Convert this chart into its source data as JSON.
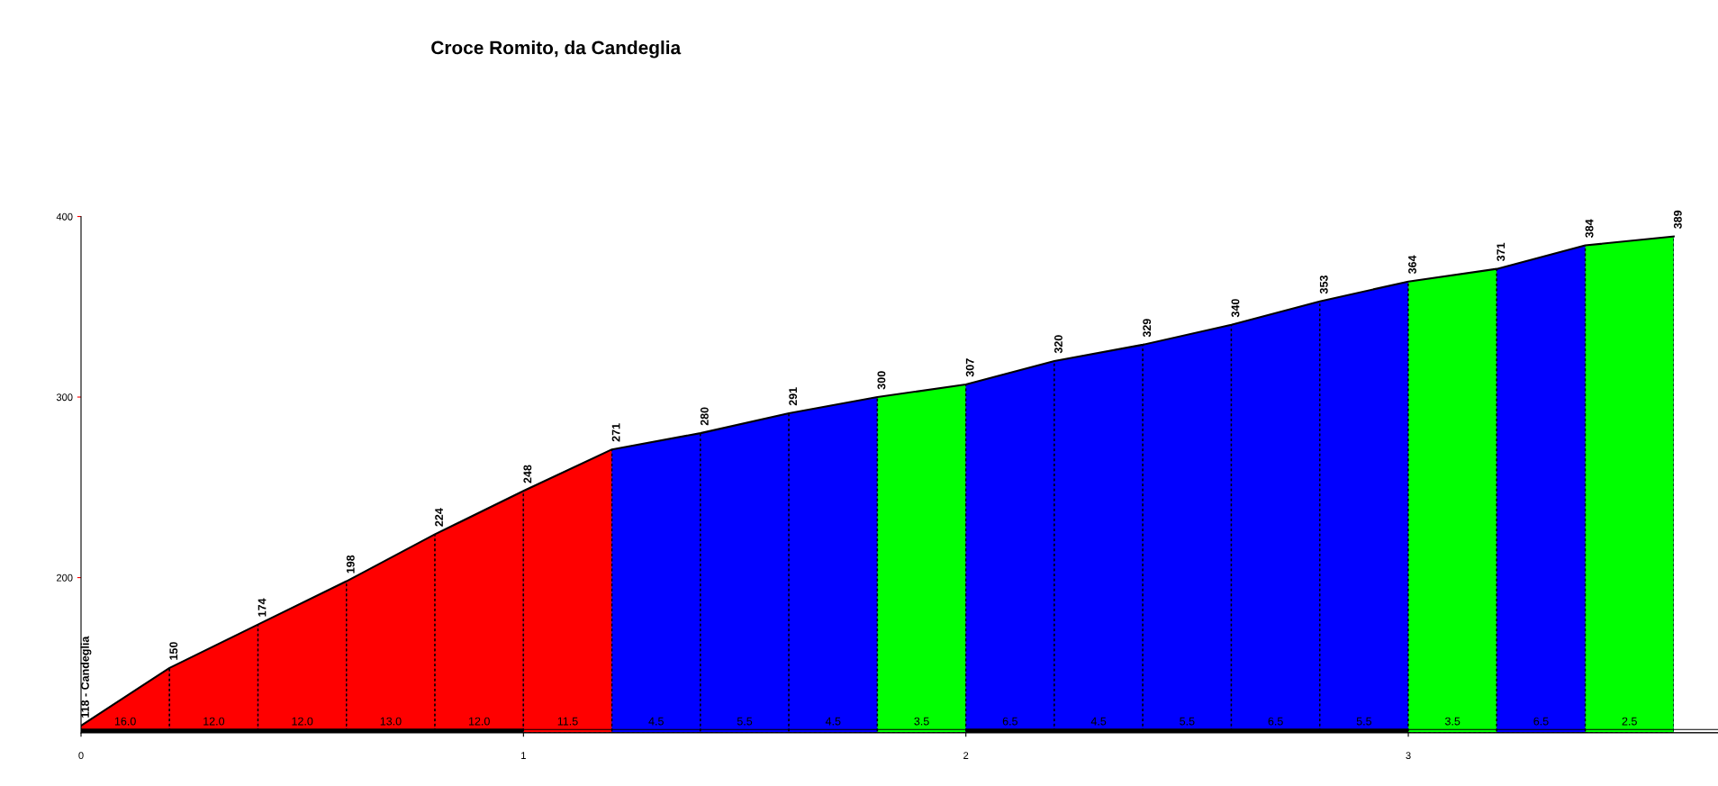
{
  "chart_data": {
    "type": "area",
    "title": "Croce Romito, da Candeglia",
    "x": [
      0,
      0.2,
      0.4,
      0.6,
      0.8,
      1.0,
      1.2,
      1.4,
      1.6,
      1.8,
      2.0,
      2.2,
      2.4,
      2.6,
      2.8,
      3.0,
      3.2,
      3.4,
      3.6
    ],
    "values": [
      118,
      150,
      174,
      198,
      224,
      248,
      271,
      280,
      291,
      300,
      307,
      320,
      329,
      340,
      353,
      364,
      371,
      384,
      389
    ],
    "value_labels": [
      "118 - Candeglia",
      "150",
      "174",
      "198",
      "224",
      "248",
      "271",
      "280",
      "291",
      "300",
      "307",
      "320",
      "329",
      "340",
      "353",
      "364",
      "371",
      "384",
      "389"
    ],
    "bands": [
      {
        "axis": "x",
        "from": 0,
        "to": 0.2,
        "label": "16.0",
        "color": "#ff0000"
      },
      {
        "axis": "x",
        "from": 0.2,
        "to": 0.4,
        "label": "12.0",
        "color": "#ff0000"
      },
      {
        "axis": "x",
        "from": 0.4,
        "to": 0.6,
        "label": "12.0",
        "color": "#ff0000"
      },
      {
        "axis": "x",
        "from": 0.6,
        "to": 0.8,
        "label": "13.0",
        "color": "#ff0000"
      },
      {
        "axis": "x",
        "from": 0.8,
        "to": 1.0,
        "label": "12.0",
        "color": "#ff0000"
      },
      {
        "axis": "x",
        "from": 1.0,
        "to": 1.2,
        "label": "11.5",
        "color": "#ff0000"
      },
      {
        "axis": "x",
        "from": 1.2,
        "to": 1.4,
        "label": "4.5",
        "color": "#0000ff"
      },
      {
        "axis": "x",
        "from": 1.4,
        "to": 1.6,
        "label": "5.5",
        "color": "#0000ff"
      },
      {
        "axis": "x",
        "from": 1.6,
        "to": 1.8,
        "label": "4.5",
        "color": "#0000ff"
      },
      {
        "axis": "x",
        "from": 1.8,
        "to": 2.0,
        "label": "3.5",
        "color": "#00ff00"
      },
      {
        "axis": "x",
        "from": 2.0,
        "to": 2.2,
        "label": "6.5",
        "color": "#0000ff"
      },
      {
        "axis": "x",
        "from": 2.2,
        "to": 2.4,
        "label": "4.5",
        "color": "#0000ff"
      },
      {
        "axis": "x",
        "from": 2.4,
        "to": 2.6,
        "label": "5.5",
        "color": "#0000ff"
      },
      {
        "axis": "x",
        "from": 2.6,
        "to": 2.8,
        "label": "6.5",
        "color": "#0000ff"
      },
      {
        "axis": "x",
        "from": 2.8,
        "to": 3.0,
        "label": "5.5",
        "color": "#0000ff"
      },
      {
        "axis": "x",
        "from": 3.0,
        "to": 3.2,
        "label": "3.5",
        "color": "#00ff00"
      },
      {
        "axis": "x",
        "from": 3.2,
        "to": 3.4,
        "label": "6.5",
        "color": "#0000ff"
      },
      {
        "axis": "x",
        "from": 3.4,
        "to": 3.6,
        "label": "2.5",
        "color": "#00ff00"
      }
    ],
    "color": "#0000ff",
    "xlim": [
      0,
      3.7
    ],
    "ylim": [
      114,
      400
    ],
    "xticks": [
      0,
      1,
      2,
      3
    ],
    "yticks": [
      200,
      300,
      400
    ],
    "grid": false,
    "legend": false
  }
}
